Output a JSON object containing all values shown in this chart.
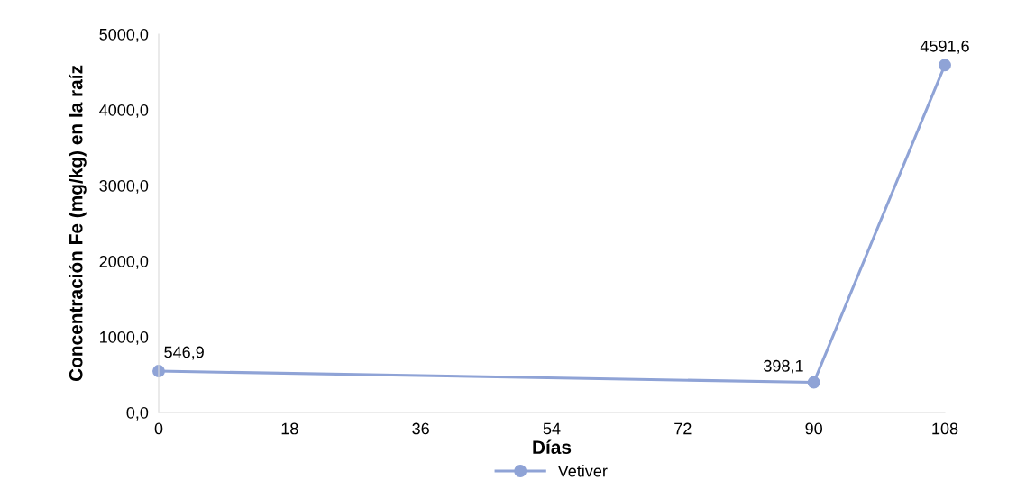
{
  "chart_data": {
    "type": "line",
    "xlabel": "Días",
    "ylabel": "Concentración Fe (mg/kg) en la raíz",
    "x": [
      0,
      90,
      108
    ],
    "series": [
      {
        "name": "Vetiver",
        "color": "#8fa3d6",
        "values": [
          546.9,
          398.1,
          4591.6
        ],
        "value_labels": [
          "546,9",
          "398,1",
          "4591,6"
        ]
      }
    ],
    "xlim": [
      0,
      108
    ],
    "xticks": [
      0,
      18,
      36,
      54,
      72,
      90,
      108
    ],
    "ylim": [
      0,
      5000
    ],
    "yticks": [
      {
        "value": 0,
        "label": "0,0"
      },
      {
        "value": 1000,
        "label": "1000,0"
      },
      {
        "value": 2000,
        "label": "2000,0"
      },
      {
        "value": 3000,
        "label": "3000,0"
      },
      {
        "value": 4000,
        "label": "4000,0"
      },
      {
        "value": 5000,
        "label": "5000,0"
      }
    ],
    "marker": "circle",
    "line_style": "solid",
    "legend": "bottom",
    "grid": false
  }
}
